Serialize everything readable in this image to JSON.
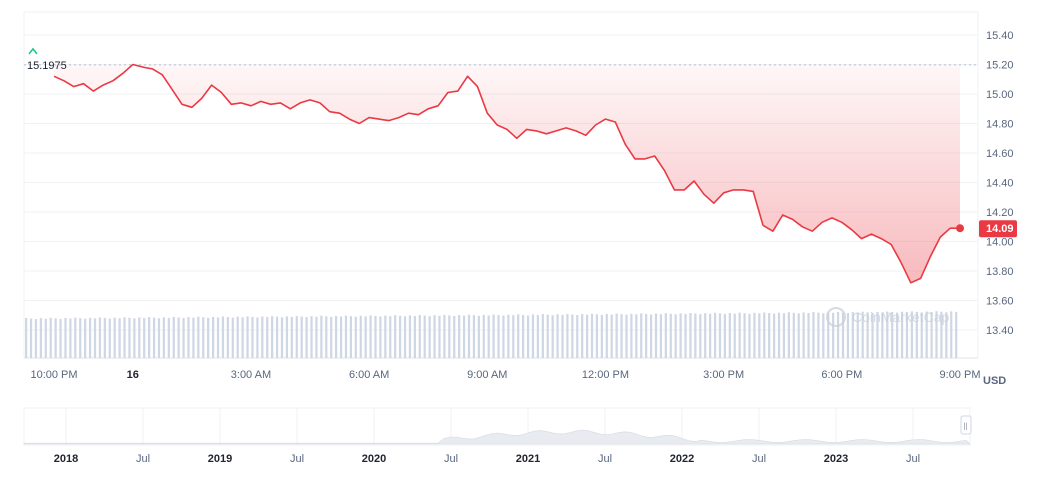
{
  "chart_data": {
    "type": "area",
    "currency_label": "USD",
    "open_label": "15.1975",
    "last_price_label": "14.09",
    "open_value": 15.1975,
    "last_value": 14.09,
    "ylim": [
      13.3,
      15.5
    ],
    "y_ticks": [
      "15.40",
      "15.20",
      "15.00",
      "14.80",
      "14.60",
      "14.40",
      "14.20",
      "14.00",
      "13.80",
      "13.60",
      "13.40"
    ],
    "y_tick_values": [
      15.4,
      15.2,
      15.0,
      14.8,
      14.6,
      14.4,
      14.2,
      14.0,
      13.8,
      13.6,
      13.4
    ],
    "x_ticks": [
      "10:00 PM",
      "16",
      "3:00 AM",
      "6:00 AM",
      "9:00 AM",
      "12:00 PM",
      "3:00 PM",
      "6:00 PM",
      "9:00 PM"
    ],
    "x_tick_hours": [
      0,
      2,
      5,
      8,
      11,
      14,
      17,
      20,
      23
    ],
    "x_tick_bold": [
      false,
      true,
      false,
      false,
      false,
      false,
      false,
      false,
      false
    ],
    "x_range_hours": [
      -0.2,
      23.3
    ],
    "series": [
      {
        "x": [
          0,
          0.25,
          0.5,
          0.75,
          1,
          1.25,
          1.5,
          1.75,
          2,
          2.15,
          2.3,
          2.5,
          2.75,
          3,
          3.25,
          3.5,
          3.75,
          4,
          4.25,
          4.5,
          4.75,
          5,
          5.25,
          5.5,
          5.75,
          6,
          6.25,
          6.5,
          6.75,
          7,
          7.25,
          7.5,
          7.75,
          8,
          8.25,
          8.5,
          8.75,
          9,
          9.25,
          9.5,
          9.75,
          10,
          10.25,
          10.5,
          10.75,
          11,
          11.25,
          11.5,
          11.75,
          12,
          12.25,
          12.5,
          12.75,
          13,
          13.25,
          13.5,
          13.75,
          14,
          14.25,
          14.5,
          14.75,
          15,
          15.25,
          15.5,
          15.75,
          16,
          16.25,
          16.5,
          16.75,
          17,
          17.25,
          17.5,
          17.75,
          18,
          18.25,
          18.5,
          18.75,
          19,
          19.25,
          19.5,
          19.75,
          20,
          20.25,
          20.5,
          20.75,
          21,
          21.25,
          21.5,
          21.75,
          22,
          22.25,
          22.5,
          22.75,
          23
        ],
        "y": [
          15.12,
          15.09,
          15.05,
          15.07,
          15.02,
          15.06,
          15.09,
          15.14,
          15.2,
          15.19,
          15.18,
          15.17,
          15.13,
          15.03,
          14.93,
          14.91,
          14.97,
          15.06,
          15.01,
          14.93,
          14.94,
          14.92,
          14.95,
          14.93,
          14.94,
          14.9,
          14.94,
          14.96,
          14.94,
          14.88,
          14.87,
          14.83,
          14.8,
          14.84,
          14.83,
          14.82,
          14.84,
          14.87,
          14.86,
          14.9,
          14.92,
          15.01,
          15.02,
          15.12,
          15.05,
          14.87,
          14.79,
          14.76,
          14.7,
          14.76,
          14.75,
          14.73,
          14.75,
          14.77,
          14.75,
          14.72,
          14.79,
          14.83,
          14.81,
          14.66,
          14.56,
          14.56,
          14.58,
          14.48,
          14.35,
          14.35,
          14.41,
          14.32,
          14.26,
          14.33,
          14.35,
          14.35,
          14.34,
          14.11,
          14.07,
          14.18,
          14.15,
          14.1,
          14.07,
          14.13,
          14.16,
          14.13,
          14.08,
          14.02,
          14.05,
          14.02,
          13.98,
          13.86,
          13.72,
          13.75,
          13.9,
          14.03,
          14.09,
          14.09
        ]
      }
    ],
    "volume_bar_count": 190,
    "navigator": {
      "labels": [
        "2018",
        "Jul",
        "2019",
        "Jul",
        "2020",
        "Jul",
        "2021",
        "Jul",
        "2022",
        "Jul",
        "2023",
        "Jul"
      ],
      "label_bold": [
        true,
        false,
        true,
        false,
        true,
        false,
        true,
        false,
        true,
        false,
        true,
        false
      ],
      "handle_glyph": "||"
    },
    "watermark": "CoinMarketCap",
    "colors": {
      "line": "#ea3943",
      "open_marker": "#16c784",
      "grid": "#eff2f5",
      "volume": "#cfd6e4",
      "axis_text": "#58667e",
      "navigator_fill": "#e8ebf0",
      "last_price_label_bg": "#ea3943"
    }
  }
}
